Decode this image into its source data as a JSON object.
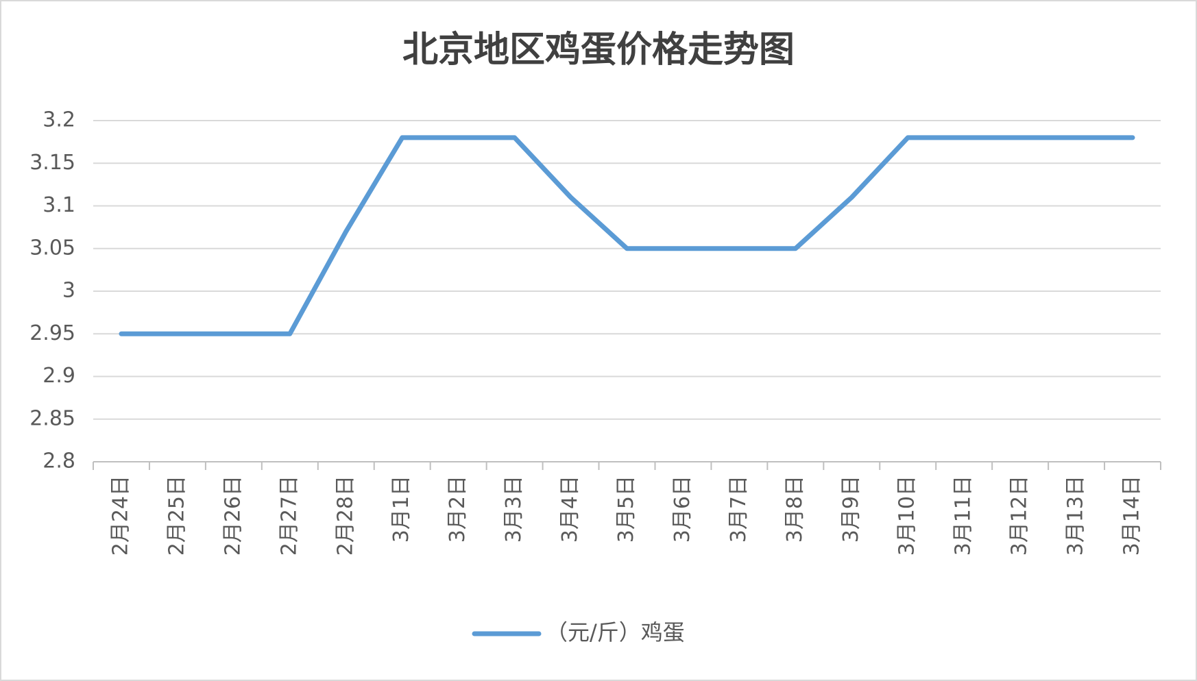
{
  "chart_data": {
    "type": "line",
    "title": "北京地区鸡蛋价格走势图",
    "categories": [
      "2月24日",
      "2月25日",
      "2月26日",
      "2月27日",
      "2月28日",
      "3月1日",
      "3月2日",
      "3月3日",
      "3月4日",
      "3月5日",
      "3月6日",
      "3月7日",
      "3月8日",
      "3月9日",
      "3月10日",
      "3月11日",
      "3月12日",
      "3月13日",
      "3月14日"
    ],
    "series": [
      {
        "name": "（元/斤）鸡蛋",
        "color": "#5b9bd5",
        "values": [
          2.95,
          2.95,
          2.95,
          2.95,
          3.07,
          3.18,
          3.18,
          3.18,
          3.11,
          3.05,
          3.05,
          3.05,
          3.05,
          3.11,
          3.18,
          3.18,
          3.18,
          3.18,
          3.18
        ]
      }
    ],
    "ylim": [
      2.8,
      3.2
    ],
    "yticks": [
      2.8,
      2.85,
      2.9,
      2.95,
      3,
      3.05,
      3.1,
      3.15,
      3.2
    ],
    "grid": true,
    "legend": "bottom"
  }
}
